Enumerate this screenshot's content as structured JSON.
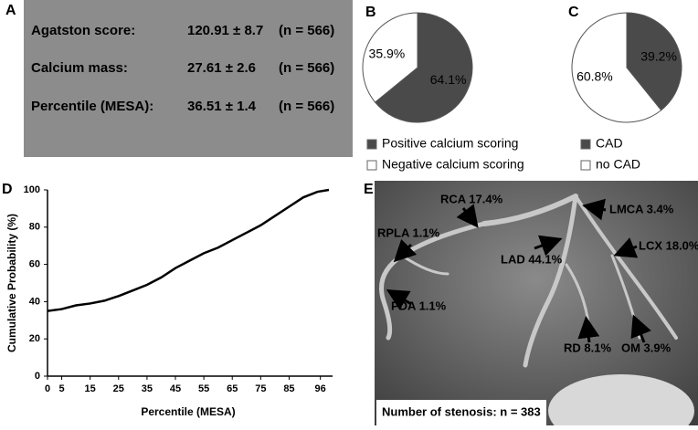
{
  "panel_a": {
    "letter": "A",
    "rows": [
      [
        "Agatston score:",
        "120.91 ± 8.7",
        "(n = 566)"
      ],
      [
        "Calcium mass:",
        "27.61 ± 2.6",
        "(n = 566)"
      ],
      [
        "Percentile (MESA):",
        "36.51 ± 1.4",
        "(n = 566)"
      ]
    ]
  },
  "chart_data": [
    {
      "type": "pie",
      "panel": "B",
      "categories": [
        "Positive calcium scoring",
        "Negative calcium scoring"
      ],
      "values": [
        64.1,
        35.9
      ],
      "value_labels": [
        "64.1%",
        "35.9%"
      ],
      "colors": [
        "#4a4a4a",
        "#ffffff"
      ]
    },
    {
      "type": "pie",
      "panel": "C",
      "categories": [
        "CAD",
        "no CAD"
      ],
      "values": [
        39.2,
        60.8
      ],
      "value_labels": [
        "39.2%",
        "60.8%"
      ],
      "colors": [
        "#4a4a4a",
        "#ffffff"
      ]
    },
    {
      "type": "line",
      "panel": "D",
      "x_label": "Percentile (MESA)",
      "y_label": "Cumulative Probability (%)",
      "x": [
        0,
        5,
        10,
        15,
        20,
        25,
        30,
        35,
        40,
        45,
        50,
        55,
        60,
        65,
        70,
        75,
        80,
        85,
        90,
        95,
        99
      ],
      "values": [
        35,
        36,
        38,
        39,
        40.5,
        43,
        46,
        49,
        53,
        58,
        62,
        66,
        69,
        73,
        77,
        81,
        86,
        91,
        96,
        99,
        100
      ],
      "color": "#000000",
      "xlim": [
        0,
        99
      ],
      "ylim": [
        0,
        100
      ],
      "xticks": [
        0,
        5,
        15,
        25,
        35,
        45,
        55,
        65,
        75,
        85,
        96
      ],
      "yticks": [
        0,
        20,
        40,
        60,
        80,
        100
      ]
    }
  ],
  "panel_e": {
    "letter": "E",
    "labels": [
      "RCA 17.4%",
      "RPLA 1.1%",
      "LMCA 3.4%",
      "LAD 44.1%",
      "LCX 18.0%",
      "PDA 1.1%",
      "RD 8.1%",
      "OM 3.9%"
    ],
    "caption": "Number of stenosis: n = 383"
  }
}
